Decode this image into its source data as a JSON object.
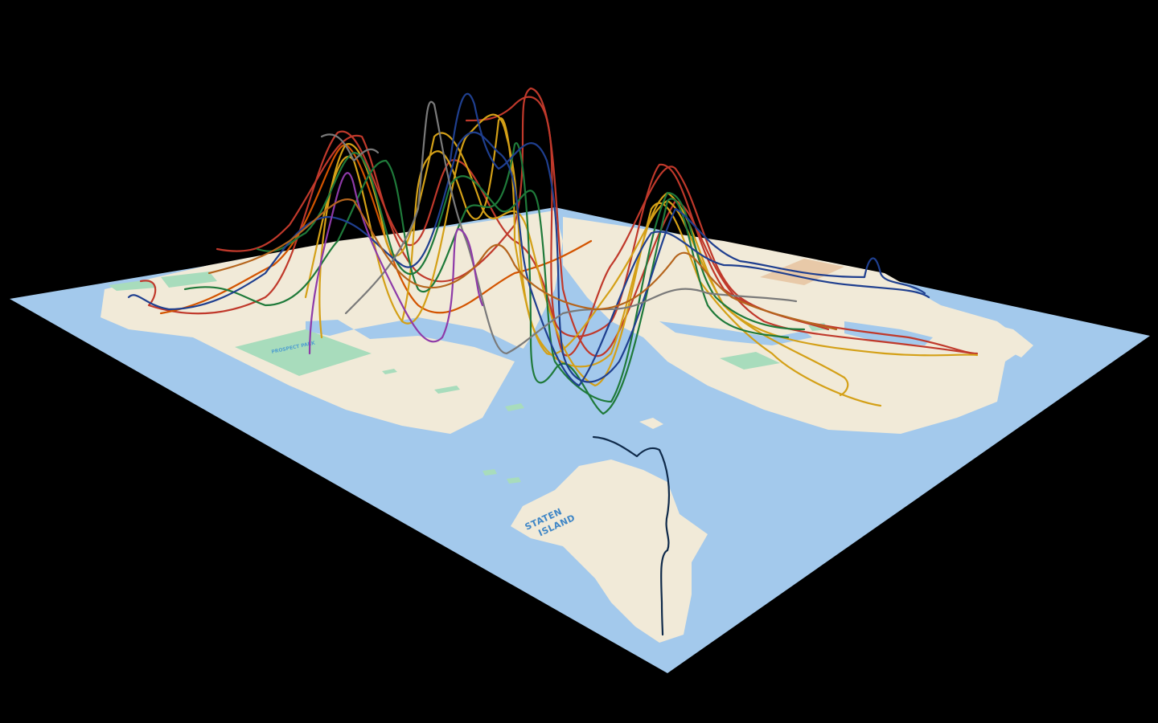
{
  "scene": {
    "background": "#000000",
    "water_color": "#a3c9ec",
    "land_color": "#f1ead8",
    "park_color": "#a8dcbc",
    "airport_color": "#e8c9a8"
  },
  "labels": {
    "staten_island_line1": "STATEN",
    "staten_island_line2": "ISLAND",
    "park_name": "PROSPECT PARK"
  },
  "routes": {
    "palette": [
      "#c0392b",
      "#d4a017",
      "#1f7a3a",
      "#1f3f8f",
      "#7a7a7a",
      "#8e3aa8",
      "#b5651d",
      "#0f2a4a"
    ]
  }
}
